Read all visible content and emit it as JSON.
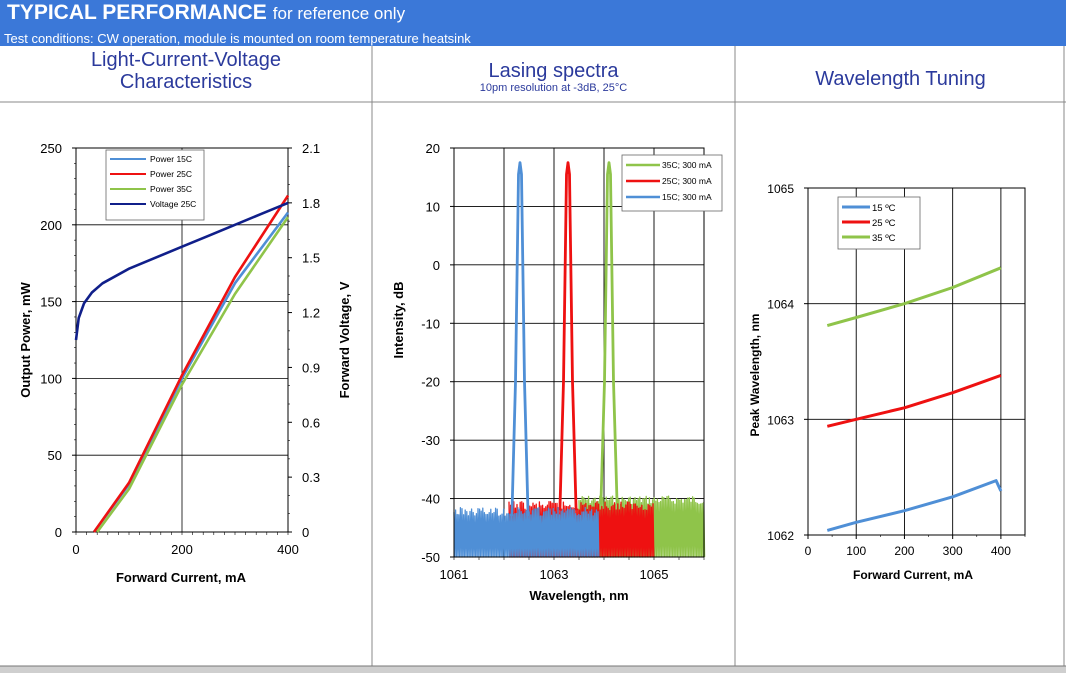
{
  "banner": {
    "title": "TYPICAL PERFORMANCE",
    "subtitle": "for reference only",
    "conditions": "Test conditions: CW operation, module is mounted on room temperature heatsink"
  },
  "panels": [
    {
      "title_line1": "Light-Current-Voltage",
      "title_line2": "Characteristics",
      "note": ""
    },
    {
      "title_line1": "Lasing spectra",
      "title_line2": "",
      "note": "10pm resolution at -3dB, 25°C"
    },
    {
      "title_line1": "Wavelength Tuning",
      "title_line2": "",
      "note": ""
    }
  ],
  "colors": {
    "banner": "#3b78d8",
    "header_text": "#2b3a9c",
    "blue": "#4f8fd6",
    "red": "#ee1111",
    "green": "#8fc44a",
    "navy": "#101f8a"
  },
  "chart_data": [
    {
      "type": "line",
      "xlabel": "Forward Current, mA",
      "ylabel": "Output Power, mW",
      "y2label": "Forward Voltage, V",
      "xlim": [
        0,
        400
      ],
      "ylim": [
        0,
        250
      ],
      "y2lim": [
        0,
        2.1
      ],
      "xticks": [
        0,
        200,
        400
      ],
      "yticks": [
        0,
        50,
        100,
        150,
        200,
        250
      ],
      "y2ticks": [
        0,
        0.3,
        0.6,
        0.9,
        1.2,
        1.5,
        1.8,
        2.1
      ],
      "legend_position": "top-left",
      "series": [
        {
          "name": "Power  15C",
          "axis": "y",
          "color": "blue",
          "x": [
            34,
            100,
            200,
            300,
            400
          ],
          "y": [
            0,
            31,
            100,
            162,
            208
          ]
        },
        {
          "name": "Power  25C",
          "axis": "y",
          "color": "red",
          "x": [
            34,
            100,
            200,
            300,
            400
          ],
          "y": [
            0,
            32,
            102,
            166,
            219
          ]
        },
        {
          "name": "Power  35C",
          "axis": "y",
          "color": "green",
          "x": [
            40,
            100,
            200,
            300,
            400
          ],
          "y": [
            0,
            28,
            96,
            155,
            205
          ]
        },
        {
          "name": "Voltage 25C",
          "axis": "y2",
          "color": "navy",
          "x": [
            0,
            5,
            15,
            30,
            50,
            100,
            150,
            200,
            250,
            300,
            350,
            400
          ],
          "y": [
            1.05,
            1.17,
            1.25,
            1.31,
            1.36,
            1.44,
            1.5,
            1.56,
            1.62,
            1.68,
            1.74,
            1.8
          ]
        }
      ]
    },
    {
      "type": "line",
      "xlabel": "Wavelength, nm",
      "ylabel": "Intensity, dB",
      "xlim": [
        1061,
        1066
      ],
      "ylim": [
        -50,
        20
      ],
      "xticks": [
        1061,
        1063,
        1065
      ],
      "yticks": [
        -50,
        -40,
        -30,
        -20,
        -10,
        0,
        10,
        20
      ],
      "legend_position": "top-right",
      "series": [
        {
          "name": "35C; 300 mA",
          "color": "green",
          "peak": 1064.1,
          "peak_db": 17.5,
          "noise_range": [
            1063.5,
            1066
          ],
          "noise_db": -42
        },
        {
          "name": "25C; 300 mA",
          "color": "red",
          "peak": 1063.28,
          "peak_db": 17.5,
          "noise_range": [
            1062.1,
            1065.0
          ],
          "noise_db": -43
        },
        {
          "name": "15C; 300 mA",
          "color": "blue",
          "peak": 1062.32,
          "peak_db": 17.5,
          "noise_range": [
            1061.0,
            1063.9
          ],
          "noise_db": -44
        }
      ]
    },
    {
      "type": "line",
      "xlabel": "Forward Current, mA",
      "ylabel": "Peak Wavelength, nm",
      "xlim": [
        0,
        450
      ],
      "ylim": [
        1062,
        1065
      ],
      "xticks": [
        0,
        100,
        200,
        300,
        400
      ],
      "yticks": [
        1062,
        1063,
        1064,
        1065
      ],
      "legend_position": "top-left",
      "series": [
        {
          "name": "15 ºC",
          "color": "blue",
          "x": [
            40,
            100,
            200,
            300,
            390,
            400
          ],
          "y": [
            1062.04,
            1062.11,
            1062.21,
            1062.33,
            1062.47,
            1062.38
          ]
        },
        {
          "name": "25 ºC",
          "color": "red",
          "x": [
            40,
            100,
            200,
            300,
            400
          ],
          "y": [
            1062.94,
            1063.0,
            1063.1,
            1063.23,
            1063.38
          ]
        },
        {
          "name": "35 ºC",
          "color": "green",
          "x": [
            40,
            100,
            200,
            300,
            400
          ],
          "y": [
            1063.81,
            1063.88,
            1064.0,
            1064.14,
            1064.31
          ]
        }
      ]
    }
  ]
}
